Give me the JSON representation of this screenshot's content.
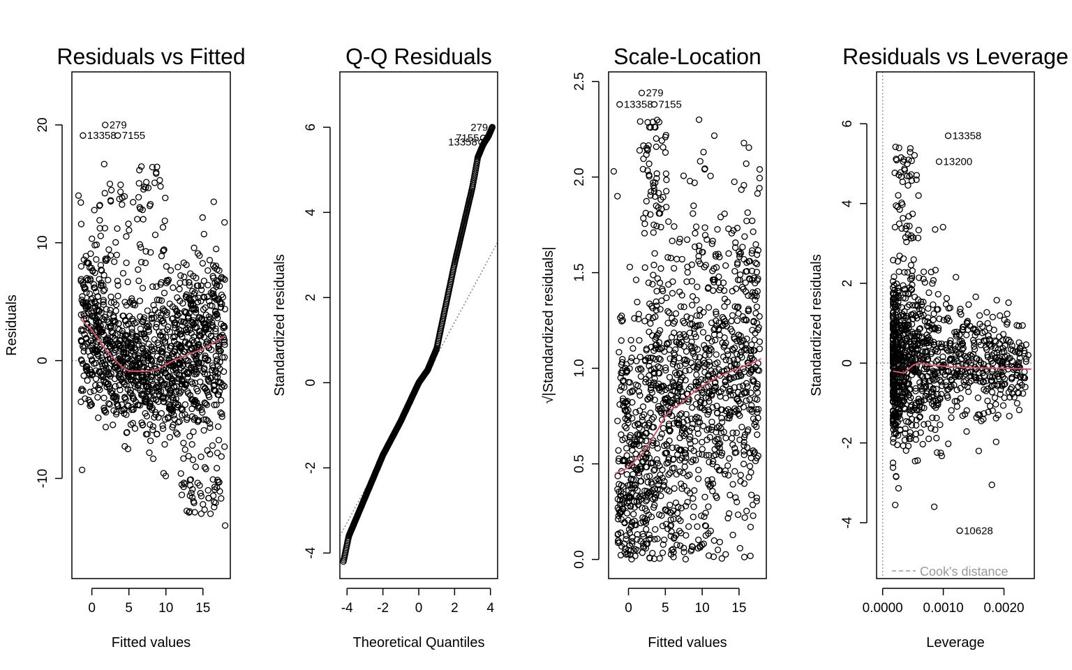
{
  "chart_data": [
    {
      "type": "scatter",
      "title": "Residuals vs Fitted",
      "xlabel": "Fitted values",
      "ylabel": "Residuals",
      "xlim": [
        -2.7,
        18.7
      ],
      "ylim": [
        -18.5,
        24.5
      ],
      "xticks": [
        "0",
        "5",
        "10",
        "15"
      ],
      "yticks": [
        "-10",
        "0",
        "10",
        "20"
      ],
      "reference_line": {
        "y": 0,
        "style": "dotted",
        "color": "#999999"
      },
      "smoother": {
        "color": "#DF536B",
        "x": [
          -1.5,
          0,
          2,
          4,
          5,
          6,
          8,
          9,
          11,
          13,
          15,
          17,
          18
        ],
        "y": [
          3.5,
          2.6,
          0.8,
          -0.5,
          -0.9,
          -0.9,
          -0.9,
          -0.7,
          0,
          0.5,
          1.0,
          1.7,
          2.1
        ]
      },
      "labeled_points": [
        {
          "label": "279",
          "x": 1.8,
          "y": 20
        },
        {
          "label": "13358",
          "x": -1.2,
          "y": 19.1
        },
        {
          "label": "7155",
          "x": 3.5,
          "y": 19.1
        }
      ]
    },
    {
      "type": "scatter",
      "title": "Q-Q Residuals",
      "xlabel": "Theoretical Quantiles",
      "ylabel": "Standardized residuals",
      "xlim": [
        -4.4,
        4.4
      ],
      "ylim": [
        -4.6,
        7.3
      ],
      "xticks": [
        "-4",
        "-2",
        "0",
        "2",
        "4"
      ],
      "yticks": [
        "-4",
        "-2",
        "0",
        "2",
        "4",
        "6"
      ],
      "reference_line": {
        "x": [
          -4.4,
          4.4
        ],
        "y": [
          -3.6,
          3.3
        ],
        "style": "dotted",
        "color": "#808080"
      },
      "qq_curve": {
        "x": [
          -4.2,
          -3.9,
          -3.5,
          -3,
          -2,
          -1,
          0,
          0.5,
          1,
          1.5,
          2,
          2.5,
          3,
          3.3,
          3.6,
          3.9,
          4.1
        ],
        "y": [
          -4.2,
          -3.6,
          -3.2,
          -2.7,
          -1.7,
          -0.9,
          0,
          0.3,
          0.8,
          1.8,
          2.8,
          3.7,
          4.6,
          5.3,
          5.6,
          5.8,
          6.0
        ]
      },
      "labeled_points": [
        {
          "label": "279",
          "x": 4.1,
          "y": 6.0
        },
        {
          "label": "7155",
          "x": 3.6,
          "y": 5.75
        },
        {
          "label": "13358",
          "x": 3.5,
          "y": 5.65
        }
      ]
    },
    {
      "type": "scatter",
      "title": "Scale-Location",
      "xlabel": "Fitted values",
      "ylabel": "√|Standardized residuals|",
      "xlim": [
        -2.7,
        18.7
      ],
      "ylim": [
        -0.1,
        2.55
      ],
      "xticks": [
        "0",
        "5",
        "10",
        "15"
      ],
      "yticks": [
        "0.0",
        "0.5",
        "1.0",
        "1.5",
        "2.0",
        "2.5"
      ],
      "smoother": {
        "color": "#DF536B",
        "x": [
          -1.8,
          0,
          2,
          4,
          5,
          6,
          7,
          9,
          11,
          13,
          15,
          17,
          18
        ],
        "y": [
          0.45,
          0.48,
          0.56,
          0.68,
          0.75,
          0.79,
          0.81,
          0.88,
          0.93,
          0.97,
          1.0,
          1.03,
          1.05
        ]
      },
      "labeled_points": [
        {
          "label": "279",
          "x": 1.8,
          "y": 2.44
        },
        {
          "label": "13358",
          "x": -1.2,
          "y": 2.38
        },
        {
          "label": "7155",
          "x": 3.5,
          "y": 2.38
        }
      ]
    },
    {
      "type": "scatter",
      "title": "Residuals vs Leverage",
      "xlabel": "Leverage",
      "ylabel": "Standardized residuals",
      "xlim": [
        -0.0001,
        0.0025
      ],
      "ylim": [
        -5.4,
        7.3
      ],
      "xticks": [
        "0.0000",
        "0.0010",
        "0.0020"
      ],
      "yticks": [
        "-4",
        "-2",
        "0",
        "2",
        "4",
        "6"
      ],
      "reference_line": {
        "y": 0,
        "style": "dotted",
        "color": "#999999"
      },
      "smoother": {
        "color": "#DF536B",
        "x": [
          0.00017,
          0.00035,
          0.0005,
          0.0006,
          0.0008,
          0.0012,
          0.0016,
          0.002,
          0.00245
        ],
        "y": [
          -0.2,
          -0.25,
          -0.05,
          0.0,
          -0.05,
          -0.1,
          -0.12,
          -0.13,
          -0.15
        ]
      },
      "labeled_points": [
        {
          "label": "13358",
          "x": 0.00108,
          "y": 5.7
        },
        {
          "label": "13200",
          "x": 0.00093,
          "y": 5.05
        },
        {
          "label": "10628",
          "x": 0.00127,
          "y": -4.2
        }
      ],
      "legend": {
        "label": "Cook's distance",
        "position": "bottom-left",
        "color": "#999999"
      }
    }
  ]
}
